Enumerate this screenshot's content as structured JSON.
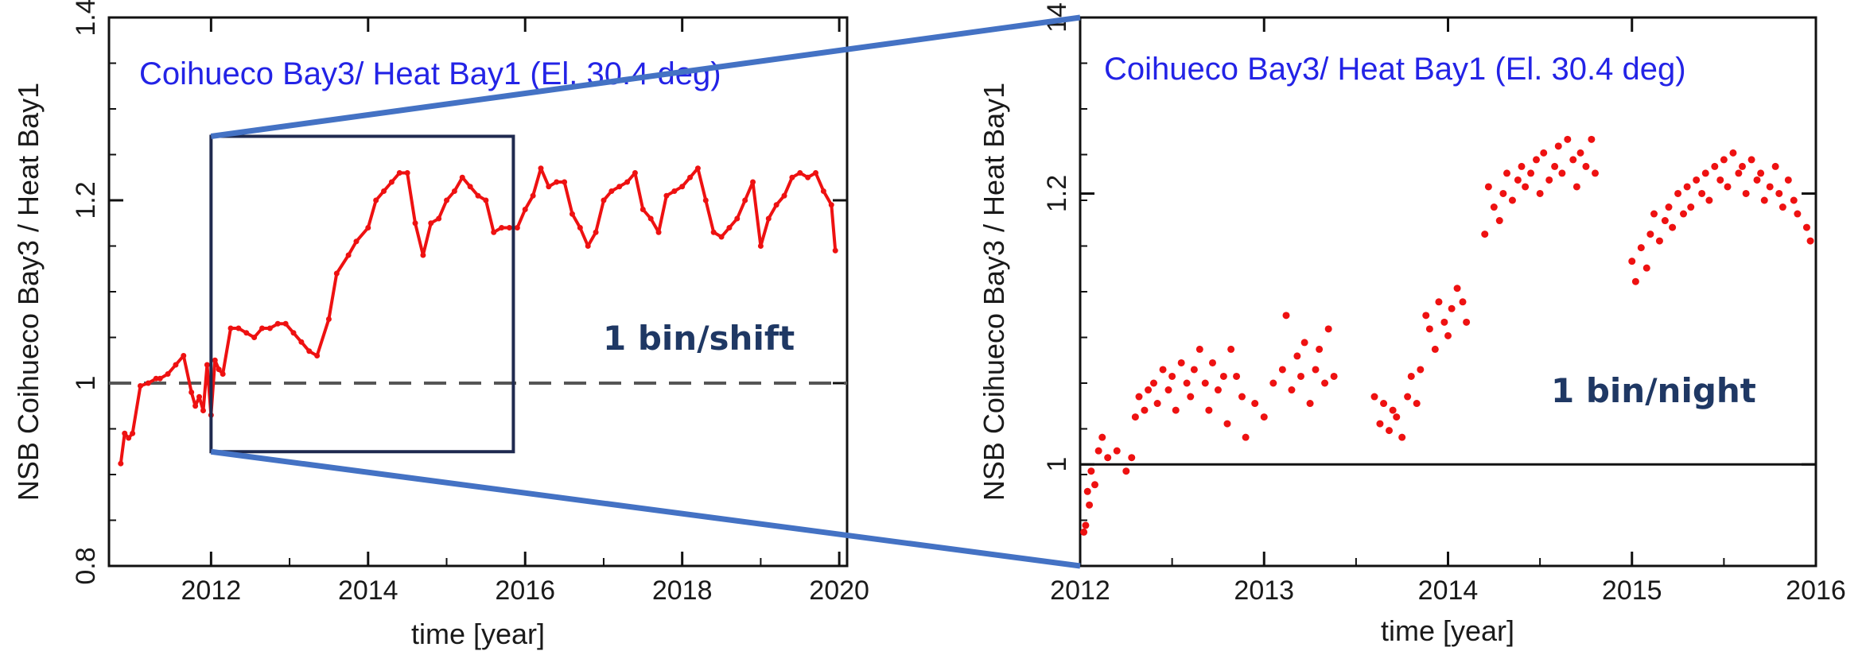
{
  "chart_data": [
    {
      "type": "line",
      "title": "Coihueco Bay3/ Heat Bay1 (El. 30.4 deg)",
      "annotation": "1 bin/shift",
      "xlabel": "time [year]",
      "ylabel": "NSB Coihueco Bay3 / Heat Bay1",
      "xlim": [
        2010.7,
        2020.1
      ],
      "ylim": [
        0.8,
        1.4
      ],
      "xticks": [
        "2012",
        "2014",
        "2016",
        "2018",
        "2020"
      ],
      "yticks": [
        "0.8",
        "1",
        "1.2",
        "1.4"
      ],
      "reference_line": 1.0,
      "grid": false,
      "series_color": "#ee1111",
      "zoom_box": {
        "x": [
          2012.0,
          2015.85
        ],
        "y": [
          0.925,
          1.27
        ]
      },
      "series": [
        {
          "x": [
            2010.85,
            2010.9,
            2010.95,
            2011.0,
            2011.1,
            2011.2,
            2011.3,
            2011.35,
            2011.45,
            2011.55,
            2011.65,
            2011.75,
            2011.8,
            2011.85,
            2011.9,
            2011.95,
            2012.0,
            2012.05,
            2012.1,
            2012.15,
            2012.25,
            2012.35,
            2012.45,
            2012.55,
            2012.65,
            2012.75,
            2012.85,
            2012.95,
            2013.05,
            2013.15,
            2013.25,
            2013.35,
            2013.5,
            2013.6,
            2013.75,
            2013.85,
            2014.0,
            2014.1,
            2014.2,
            2014.3,
            2014.4,
            2014.5,
            2014.6,
            2014.7,
            2014.8,
            2014.9,
            2015.0,
            2015.1,
            2015.2,
            2015.3,
            2015.4,
            2015.5,
            2015.6,
            2015.7,
            2015.8,
            2015.9,
            2016.0,
            2016.1,
            2016.2,
            2016.3,
            2016.4,
            2016.5,
            2016.6,
            2016.7,
            2016.8,
            2016.9,
            2017.0,
            2017.1,
            2017.2,
            2017.3,
            2017.4,
            2017.5,
            2017.6,
            2017.7,
            2017.8,
            2017.9,
            2018.0,
            2018.1,
            2018.2,
            2018.3,
            2018.4,
            2018.5,
            2018.6,
            2018.7,
            2018.8,
            2018.9,
            2019.0,
            2019.1,
            2019.2,
            2019.3,
            2019.4,
            2019.5,
            2019.6,
            2019.7,
            2019.8,
            2019.9,
            2019.95
          ],
          "y": [
            0.912,
            0.945,
            0.94,
            0.945,
            0.997,
            1.0,
            1.005,
            1.005,
            1.01,
            1.02,
            1.03,
            0.99,
            0.975,
            0.985,
            0.97,
            1.02,
            0.965,
            1.025,
            1.015,
            1.01,
            1.06,
            1.06,
            1.055,
            1.05,
            1.06,
            1.06,
            1.065,
            1.065,
            1.055,
            1.045,
            1.035,
            1.03,
            1.07,
            1.12,
            1.14,
            1.155,
            1.17,
            1.2,
            1.21,
            1.22,
            1.23,
            1.23,
            1.175,
            1.14,
            1.175,
            1.18,
            1.2,
            1.21,
            1.225,
            1.215,
            1.205,
            1.2,
            1.165,
            1.17,
            1.17,
            1.17,
            1.19,
            1.205,
            1.235,
            1.215,
            1.22,
            1.22,
            1.185,
            1.17,
            1.15,
            1.165,
            1.2,
            1.21,
            1.215,
            1.22,
            1.23,
            1.19,
            1.18,
            1.165,
            1.205,
            1.21,
            1.215,
            1.225,
            1.235,
            1.2,
            1.165,
            1.16,
            1.17,
            1.18,
            1.2,
            1.22,
            1.15,
            1.18,
            1.195,
            1.205,
            1.225,
            1.23,
            1.225,
            1.23,
            1.21,
            1.195,
            1.145
          ]
        }
      ]
    },
    {
      "type": "scatter",
      "title": "Coihueco Bay3/ Heat Bay1 (El. 30.4 deg)",
      "annotation": "1 bin/night",
      "xlabel": "time [year]",
      "ylabel": "NSB Coihueco Bay3 / Heat Bay1",
      "xlim": [
        2012.0,
        2016.0
      ],
      "ylim": [
        0.925,
        1.33
      ],
      "xticks": [
        "2012",
        "2013",
        "2014",
        "2015",
        "2016"
      ],
      "yticks": [
        "1",
        "1.2",
        "14"
      ],
      "reference_line": 1.0,
      "grid": false,
      "series_color": "#ee1111",
      "series": [
        {
          "x": [
            2012.02,
            2012.03,
            2012.04,
            2012.05,
            2012.06,
            2012.08,
            2012.1,
            2012.12,
            2012.15,
            2012.2,
            2012.25,
            2012.28,
            2012.3,
            2012.32,
            2012.35,
            2012.37,
            2012.4,
            2012.42,
            2012.45,
            2012.48,
            2012.5,
            2012.52,
            2012.55,
            2012.58,
            2012.6,
            2012.62,
            2012.65,
            2012.68,
            2012.7,
            2012.72,
            2012.75,
            2012.78,
            2012.8,
            2012.82,
            2012.85,
            2012.88,
            2012.9,
            2012.95,
            2013.0,
            2013.05,
            2013.1,
            2013.12,
            2013.15,
            2013.18,
            2013.2,
            2013.22,
            2013.25,
            2013.28,
            2013.3,
            2013.33,
            2013.35,
            2013.38,
            2013.6,
            2013.63,
            2013.65,
            2013.68,
            2013.7,
            2013.72,
            2013.75,
            2013.78,
            2013.8,
            2013.83,
            2013.85,
            2013.88,
            2013.9,
            2013.93,
            2013.95,
            2013.98,
            2014.0,
            2014.02,
            2014.05,
            2014.08,
            2014.1,
            2014.2,
            2014.22,
            2014.25,
            2014.28,
            2014.3,
            2014.32,
            2014.35,
            2014.38,
            2014.4,
            2014.42,
            2014.45,
            2014.48,
            2014.5,
            2014.52,
            2014.55,
            2014.58,
            2014.6,
            2014.62,
            2014.65,
            2014.68,
            2014.7,
            2014.72,
            2014.75,
            2014.78,
            2014.8,
            2015.0,
            2015.02,
            2015.05,
            2015.08,
            2015.1,
            2015.12,
            2015.15,
            2015.18,
            2015.2,
            2015.22,
            2015.25,
            2015.28,
            2015.3,
            2015.32,
            2015.35,
            2015.38,
            2015.4,
            2015.42,
            2015.45,
            2015.48,
            2015.5,
            2015.52,
            2015.55,
            2015.58,
            2015.6,
            2015.62,
            2015.65,
            2015.68,
            2015.7,
            2015.72,
            2015.75,
            2015.78,
            2015.8,
            2015.82,
            2015.85,
            2015.88,
            2015.9,
            2015.95,
            2015.97
          ],
          "y": [
            0.95,
            0.955,
            0.98,
            0.97,
            0.995,
            0.985,
            1.01,
            1.02,
            1.005,
            1.01,
            0.995,
            1.005,
            1.035,
            1.05,
            1.04,
            1.055,
            1.06,
            1.045,
            1.07,
            1.055,
            1.065,
            1.04,
            1.075,
            1.06,
            1.05,
            1.07,
            1.085,
            1.06,
            1.04,
            1.075,
            1.055,
            1.065,
            1.03,
            1.085,
            1.065,
            1.05,
            1.02,
            1.045,
            1.035,
            1.06,
            1.07,
            1.11,
            1.055,
            1.08,
            1.065,
            1.09,
            1.045,
            1.07,
            1.085,
            1.06,
            1.1,
            1.065,
            1.05,
            1.03,
            1.045,
            1.025,
            1.04,
            1.035,
            1.02,
            1.05,
            1.065,
            1.045,
            1.07,
            1.11,
            1.1,
            1.085,
            1.12,
            1.105,
            1.095,
            1.115,
            1.13,
            1.12,
            1.105,
            1.17,
            1.205,
            1.19,
            1.18,
            1.2,
            1.215,
            1.195,
            1.21,
            1.22,
            1.205,
            1.215,
            1.225,
            1.2,
            1.23,
            1.21,
            1.22,
            1.235,
            1.215,
            1.24,
            1.225,
            1.205,
            1.23,
            1.22,
            1.24,
            1.215,
            1.15,
            1.135,
            1.16,
            1.145,
            1.17,
            1.185,
            1.165,
            1.18,
            1.19,
            1.175,
            1.2,
            1.185,
            1.205,
            1.19,
            1.21,
            1.2,
            1.215,
            1.195,
            1.22,
            1.21,
            1.225,
            1.205,
            1.23,
            1.215,
            1.22,
            1.2,
            1.225,
            1.21,
            1.215,
            1.195,
            1.205,
            1.22,
            1.2,
            1.19,
            1.21,
            1.195,
            1.185,
            1.175,
            1.165
          ]
        }
      ]
    }
  ]
}
